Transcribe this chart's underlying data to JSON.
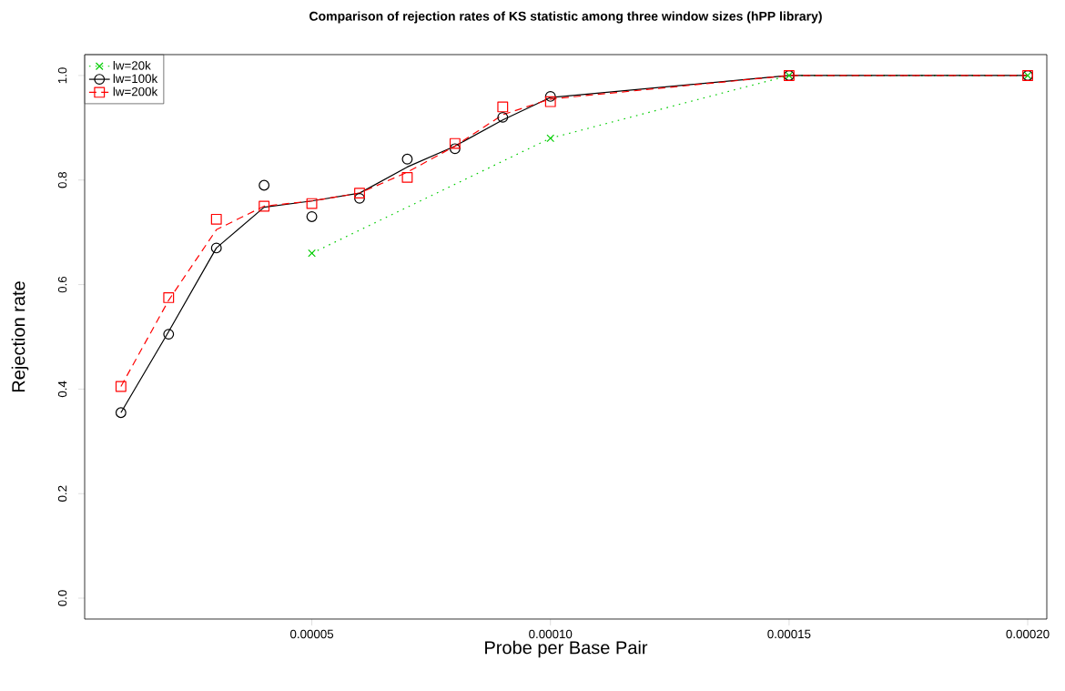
{
  "chart_data": {
    "type": "scatter",
    "title": "Comparison of rejection rates of KS statistic among three window sizes (hPP library)",
    "xlabel": "Probe per Base Pair",
    "ylabel": "Rejection rate",
    "x": [
      1e-05,
      2e-05,
      3e-05,
      4e-05,
      5e-05,
      6e-05,
      7e-05,
      8e-05,
      9e-05,
      0.0001,
      0.00015,
      0.0002
    ],
    "xlim": [
      2.4e-06,
      0.000204
    ],
    "ylim": [
      -0.04,
      1.04
    ],
    "xticks": [
      {
        "value": 5e-05,
        "label": "0.00005"
      },
      {
        "value": 0.0001,
        "label": "0.00010"
      },
      {
        "value": 0.00015,
        "label": "0.00015"
      },
      {
        "value": 0.0002,
        "label": "0.00020"
      }
    ],
    "yticks": [
      {
        "value": 0,
        "label": "0.0"
      },
      {
        "value": 0.2,
        "label": "0.2"
      },
      {
        "value": 0.4,
        "label": "0.4"
      },
      {
        "value": 0.6,
        "label": "0.6"
      },
      {
        "value": 0.8,
        "label": "0.8"
      },
      {
        "value": 1,
        "label": "1.0"
      }
    ],
    "legend": "top left",
    "series": [
      {
        "name": "lw=20k",
        "type": "line",
        "color": "#00cd00",
        "marker": "cross",
        "line_style": "dotted",
        "x": [
          5e-05,
          0.0001,
          0.00015,
          0.0002
        ],
        "values": [
          0.66,
          0.88,
          1.0,
          1.0
        ]
      },
      {
        "name": "lw=100k",
        "color": "#000000",
        "marker": "circle",
        "line_style": "solid",
        "values": [
          0.355,
          0.505,
          0.67,
          0.79,
          0.73,
          0.765,
          0.84,
          0.86,
          0.92,
          0.96,
          1.0,
          1.0
        ]
      },
      {
        "type": "line",
        "color": "#000000",
        "marker": "none",
        "line_style": "solid",
        "values": [
          0.355,
          0.51,
          0.67,
          0.748,
          0.76,
          0.775,
          0.825,
          0.865,
          0.915,
          0.958,
          1.0,
          1.0
        ]
      },
      {
        "name": "lw=200k",
        "color": "#ff0000",
        "marker": "square",
        "line_style": "dashed",
        "values": [
          0.405,
          0.575,
          0.725,
          0.75,
          0.755,
          0.775,
          0.805,
          0.87,
          0.94,
          0.95,
          1.0,
          1.0
        ]
      },
      {
        "type": "line",
        "color": "#ff0000",
        "marker": "none",
        "line_style": "dashed",
        "values": [
          0.405,
          0.57,
          0.705,
          0.75,
          0.76,
          0.775,
          0.815,
          0.865,
          0.925,
          0.955,
          1.0,
          1.0
        ]
      }
    ]
  }
}
